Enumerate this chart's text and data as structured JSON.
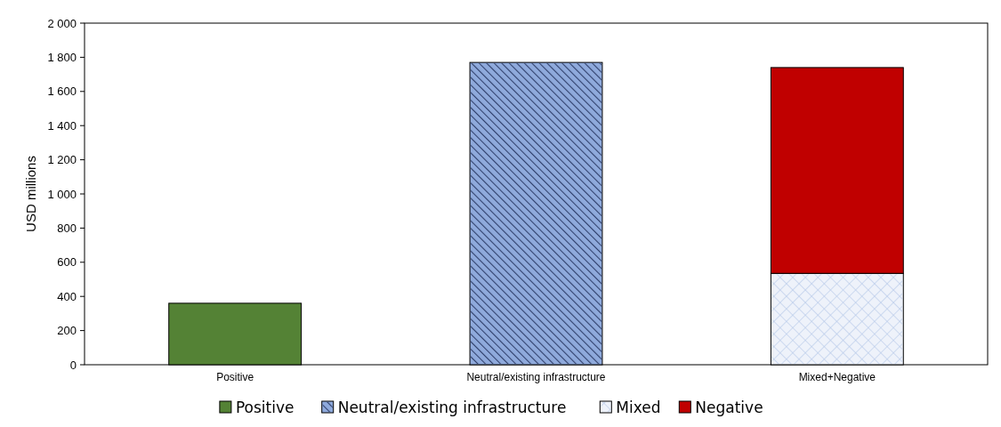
{
  "chart_data": {
    "type": "bar",
    "stacked": true,
    "ylabel": "USD millions",
    "categories": [
      "Positive",
      "Neutral/existing infrastructure",
      "Mixed+Negative"
    ],
    "series": [
      {
        "name": "Positive",
        "color": "#548235",
        "values": [
          360,
          null,
          null
        ]
      },
      {
        "name": "Neutral/existing infrastructure",
        "color": "#8faadc",
        "values": [
          null,
          1770,
          null
        ]
      },
      {
        "name": "Mixed",
        "color": "#eef2fa",
        "values": [
          null,
          null,
          535
        ]
      },
      {
        "name": "Negative",
        "color": "#c00000",
        "values": [
          null,
          null,
          1205
        ]
      }
    ],
    "ylim": [
      0,
      2000
    ],
    "yticks": [
      0,
      {
        "value": 200,
        "label": "200"
      },
      {
        "value": 400,
        "label": "400"
      },
      {
        "value": 600,
        "label": "600"
      },
      {
        "value": 800,
        "label": "800"
      },
      {
        "value": 1000,
        "label": "1 000"
      },
      {
        "value": 1200,
        "label": "1 200"
      },
      {
        "value": 1400,
        "label": "1 400"
      },
      {
        "value": 1600,
        "label": "1 600"
      },
      {
        "value": 1800,
        "label": "1 800"
      },
      {
        "value": 2000,
        "label": "2 000"
      }
    ],
    "legend": "bottom",
    "grid": false
  }
}
